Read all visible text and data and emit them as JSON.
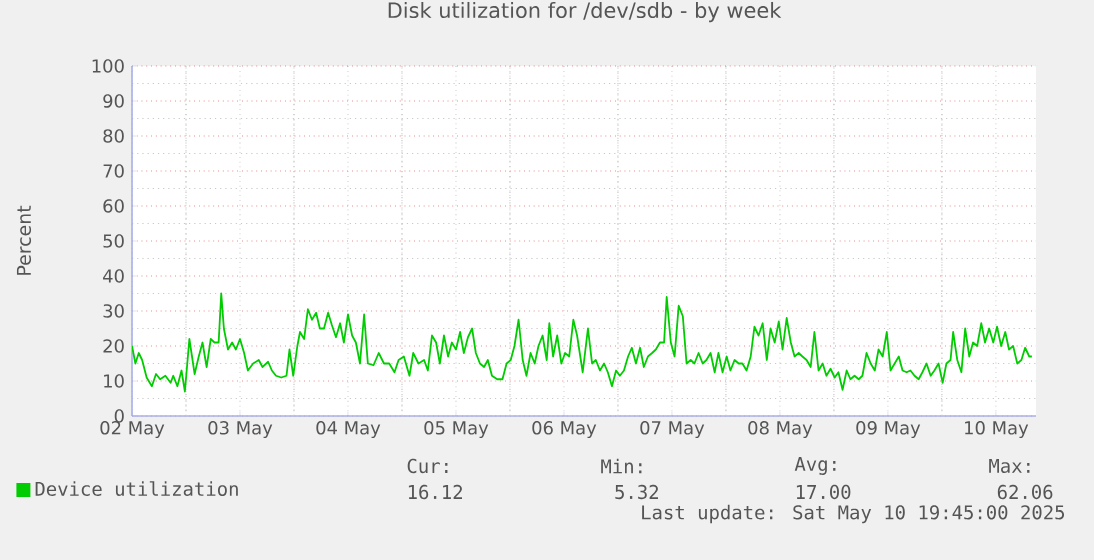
{
  "chart_data": {
    "type": "line",
    "title": "Disk utilization for /dev/sdb - by week",
    "ylabel": "Percent",
    "xlim": [
      "2025-05-02T00:00",
      "2025-05-10T08:55"
    ],
    "xticks": [
      {
        "value": "2025-05-02",
        "label": "02 May"
      },
      {
        "value": "2025-05-03",
        "label": "03 May"
      },
      {
        "value": "2025-05-04",
        "label": "04 May"
      },
      {
        "value": "2025-05-05",
        "label": "05 May"
      },
      {
        "value": "2025-05-06",
        "label": "06 May"
      },
      {
        "value": "2025-05-07",
        "label": "07 May"
      },
      {
        "value": "2025-05-08",
        "label": "08 May"
      },
      {
        "value": "2025-05-09",
        "label": "09 May"
      },
      {
        "value": "2025-05-10",
        "label": "10 May"
      },
      {
        "value": "2025-05-02T12:00",
        "label": null
      },
      {
        "value": "2025-05-03T12:00",
        "label": null
      },
      {
        "value": "2025-05-04T12:00",
        "label": null
      },
      {
        "value": "2025-05-05T12:00",
        "label": null
      },
      {
        "value": "2025-05-06T12:00",
        "label": null
      },
      {
        "value": "2025-05-07T12:00",
        "label": null
      },
      {
        "value": "2025-05-08T12:00",
        "label": null
      },
      {
        "value": "2025-05-09T12:00",
        "label": null
      }
    ],
    "ylim": [
      0,
      100
    ],
    "yticks": [
      0,
      10,
      20,
      30,
      40,
      50,
      60,
      70,
      80,
      90,
      100
    ],
    "grid": true,
    "legend": "bottom left",
    "marker": "none",
    "line_style": "solid",
    "series": [
      {
        "name": "Device utilization",
        "color": "#00cc00",
        "x": [
          "2025-05-02T00:00",
          "2025-05-02T00:45",
          "2025-05-02T01:30",
          "2025-05-02T02:15",
          "2025-05-02T03:15",
          "2025-05-02T04:25",
          "2025-05-02T05:20",
          "2025-05-02T06:15",
          "2025-05-02T07:25",
          "2025-05-02T08:35",
          "2025-05-02T09:10",
          "2025-05-02T10:05",
          "2025-05-02T11:00",
          "2025-05-02T11:45",
          "2025-05-02T12:45",
          "2025-05-02T13:55",
          "2025-05-02T14:50",
          "2025-05-02T15:40",
          "2025-05-02T16:35",
          "2025-05-02T17:30",
          "2025-05-02T18:20",
          "2025-05-02T19:15",
          "2025-05-02T19:50",
          "2025-05-02T20:25",
          "2025-05-02T21:20",
          "2025-05-02T22:15",
          "2025-05-02T23:05",
          "2025-05-03T00:00",
          "2025-05-03T00:55",
          "2025-05-03T01:45",
          "2025-05-03T02:55",
          "2025-05-03T04:10",
          "2025-05-03T05:00",
          "2025-05-03T06:15",
          "2025-05-03T07:05",
          "2025-05-03T08:00",
          "2025-05-03T09:10",
          "2025-05-03T10:20",
          "2025-05-03T11:00",
          "2025-05-03T11:50",
          "2025-05-03T12:45",
          "2025-05-03T13:20",
          "2025-05-03T14:15",
          "2025-05-03T15:05",
          "2025-05-03T16:00",
          "2025-05-03T16:55",
          "2025-05-03T17:45",
          "2025-05-03T18:40",
          "2025-05-03T19:35",
          "2025-05-03T20:25",
          "2025-05-03T21:20",
          "2025-05-03T22:15",
          "2025-05-03T23:05",
          "2025-05-04T00:00",
          "2025-05-04T00:55",
          "2025-05-04T01:45",
          "2025-05-04T02:40",
          "2025-05-04T03:35",
          "2025-05-04T04:25",
          "2025-05-04T05:40",
          "2025-05-04T06:50",
          "2025-05-04T08:00",
          "2025-05-04T09:10",
          "2025-05-04T10:20",
          "2025-05-04T11:15",
          "2025-05-04T12:25",
          "2025-05-04T13:40",
          "2025-05-04T14:30",
          "2025-05-04T15:40",
          "2025-05-04T16:55",
          "2025-05-04T17:45",
          "2025-05-04T18:40",
          "2025-05-04T19:35",
          "2025-05-04T20:25",
          "2025-05-04T21:20",
          "2025-05-04T22:15",
          "2025-05-04T23:05",
          "2025-05-05T00:00",
          "2025-05-05T00:55",
          "2025-05-05T01:45",
          "2025-05-05T02:40",
          "2025-05-05T03:35",
          "2025-05-05T04:25",
          "2025-05-05T05:20",
          "2025-05-05T06:15",
          "2025-05-05T07:05",
          "2025-05-05T08:00",
          "2025-05-05T09:10",
          "2025-05-05T10:20",
          "2025-05-05T11:15",
          "2025-05-05T12:10",
          "2025-05-05T13:00",
          "2025-05-05T13:55",
          "2025-05-05T14:50",
          "2025-05-05T15:40",
          "2025-05-05T16:35",
          "2025-05-05T17:30",
          "2025-05-05T18:20",
          "2025-05-05T19:15",
          "2025-05-05T20:10",
          "2025-05-05T20:45",
          "2025-05-05T21:35",
          "2025-05-05T22:30",
          "2025-05-05T23:25",
          "2025-05-06T00:15",
          "2025-05-06T01:10",
          "2025-05-06T02:05",
          "2025-05-06T02:55",
          "2025-05-06T04:10",
          "2025-05-06T05:20",
          "2025-05-06T06:15",
          "2025-05-06T07:05",
          "2025-05-06T08:00",
          "2025-05-06T08:55",
          "2025-05-06T09:45",
          "2025-05-06T10:40",
          "2025-05-06T11:35",
          "2025-05-06T12:25",
          "2025-05-06T13:20",
          "2025-05-06T14:15",
          "2025-05-06T15:05",
          "2025-05-06T16:00",
          "2025-05-06T16:55",
          "2025-05-06T17:45",
          "2025-05-06T18:40",
          "2025-05-06T19:35",
          "2025-05-06T20:25",
          "2025-05-06T21:20",
          "2025-05-06T22:15",
          "2025-05-06T22:50",
          "2025-05-06T23:45",
          "2025-05-07T00:35",
          "2025-05-07T01:30",
          "2025-05-07T02:25",
          "2025-05-07T03:15",
          "2025-05-07T04:10",
          "2025-05-07T05:00",
          "2025-05-07T05:55",
          "2025-05-07T06:50",
          "2025-05-07T07:40",
          "2025-05-07T08:35",
          "2025-05-07T09:30",
          "2025-05-07T10:20",
          "2025-05-07T11:15",
          "2025-05-07T12:10",
          "2025-05-07T13:00",
          "2025-05-07T13:55",
          "2025-05-07T14:50",
          "2025-05-07T15:40",
          "2025-05-07T16:35",
          "2025-05-07T17:30",
          "2025-05-07T18:20",
          "2025-05-07T19:15",
          "2025-05-07T20:10",
          "2025-05-07T21:05",
          "2025-05-07T21:55",
          "2025-05-07T22:50",
          "2025-05-07T23:45",
          "2025-05-08T00:35",
          "2025-05-08T01:30",
          "2025-05-08T02:25",
          "2025-05-08T03:15",
          "2025-05-08T04:10",
          "2025-05-08T05:00",
          "2025-05-08T05:55",
          "2025-05-08T06:50",
          "2025-05-08T07:40",
          "2025-05-08T08:35",
          "2025-05-08T09:30",
          "2025-05-08T10:20",
          "2025-05-08T11:15",
          "2025-05-08T12:10",
          "2025-05-08T13:00",
          "2025-05-08T13:55",
          "2025-05-08T14:50",
          "2025-05-08T15:40",
          "2025-05-08T16:35",
          "2025-05-08T17:30",
          "2025-05-08T18:20",
          "2025-05-08T19:15",
          "2025-05-08T20:10",
          "2025-05-08T21:05",
          "2025-05-08T21:55",
          "2025-05-08T22:50",
          "2025-05-08T23:45",
          "2025-05-09T00:35",
          "2025-05-09T01:30",
          "2025-05-09T02:25",
          "2025-05-09T03:15",
          "2025-05-09T04:10",
          "2025-05-09T05:00",
          "2025-05-09T05:55",
          "2025-05-09T06:50",
          "2025-05-09T07:40",
          "2025-05-09T08:35",
          "2025-05-09T09:30",
          "2025-05-09T10:20",
          "2025-05-09T11:15",
          "2025-05-09T12:10",
          "2025-05-09T13:00",
          "2025-05-09T13:55",
          "2025-05-09T14:30",
          "2025-05-09T15:25",
          "2025-05-09T16:20",
          "2025-05-09T17:10",
          "2025-05-09T18:05",
          "2025-05-09T18:55",
          "2025-05-09T19:50",
          "2025-05-09T20:45",
          "2025-05-09T21:35",
          "2025-05-09T22:30",
          "2025-05-09T23:25",
          "2025-05-10T00:15",
          "2025-05-10T01:10",
          "2025-05-10T02:05",
          "2025-05-10T02:55",
          "2025-05-10T03:50",
          "2025-05-10T04:45",
          "2025-05-10T05:40",
          "2025-05-10T06:30",
          "2025-05-10T07:25",
          "2025-05-10T08:00"
        ],
        "values": [
          20,
          15,
          18,
          16,
          11,
          8.5,
          12,
          10.5,
          11.5,
          9.5,
          11.5,
          8.5,
          13,
          7,
          22,
          12,
          17,
          21,
          14,
          22,
          21,
          21,
          35,
          25,
          19,
          21,
          19,
          22,
          18,
          13,
          15,
          16,
          14,
          15.5,
          13,
          11.5,
          11,
          11.5,
          19,
          11.5,
          20,
          24,
          22,
          30.5,
          27.5,
          29.5,
          25,
          25,
          29.5,
          26,
          22.5,
          26.5,
          21,
          29,
          23,
          21,
          15,
          29,
          15,
          14.5,
          18,
          15,
          15,
          12.5,
          16,
          17,
          11.5,
          18,
          15,
          16,
          13,
          23,
          21,
          15,
          23,
          17,
          21,
          19,
          24,
          18,
          22.5,
          25,
          18,
          15,
          14,
          16,
          11.5,
          10.5,
          10.5,
          15,
          16,
          20,
          27.5,
          16,
          11.5,
          18,
          15,
          20,
          23,
          16,
          26.5,
          17,
          23,
          15,
          18,
          17,
          27.5,
          23,
          12.5,
          25,
          15,
          16,
          13,
          15,
          12.5,
          8.5,
          13,
          11.5,
          13,
          17,
          19.5,
          15,
          19.5,
          14,
          17,
          18,
          19,
          21,
          21,
          34,
          21,
          17,
          31.5,
          28.5,
          15,
          16,
          15,
          18,
          15,
          16,
          18,
          12.5,
          18,
          12.5,
          17,
          13,
          16,
          15,
          15,
          13,
          17,
          25.5,
          23,
          26.5,
          16,
          25,
          21,
          27,
          19,
          28,
          21,
          17,
          18,
          17,
          16,
          14,
          24,
          13,
          15,
          11.5,
          13.5,
          11,
          12.5,
          7.5,
          13,
          10.5,
          11.5,
          10.5,
          11.5,
          18,
          15,
          13,
          19,
          17,
          24,
          13,
          15,
          17,
          13,
          12.5,
          13,
          11.5,
          10.5,
          12.5,
          15,
          11.5,
          13,
          15,
          9.5,
          15,
          16,
          24,
          16,
          12.5,
          25,
          17,
          21,
          20,
          26.5,
          21,
          25,
          21,
          25.5,
          20,
          24,
          19,
          20,
          15,
          16,
          19.5,
          17,
          17
        ]
      }
    ],
    "annotations": [
      "Cur:",
      "16.12",
      "Min:",
      "5.32",
      "Avg:",
      "17.00",
      "Max:",
      "62.06",
      "Last update: Sat May 10 19:45:00 2025"
    ]
  }
}
